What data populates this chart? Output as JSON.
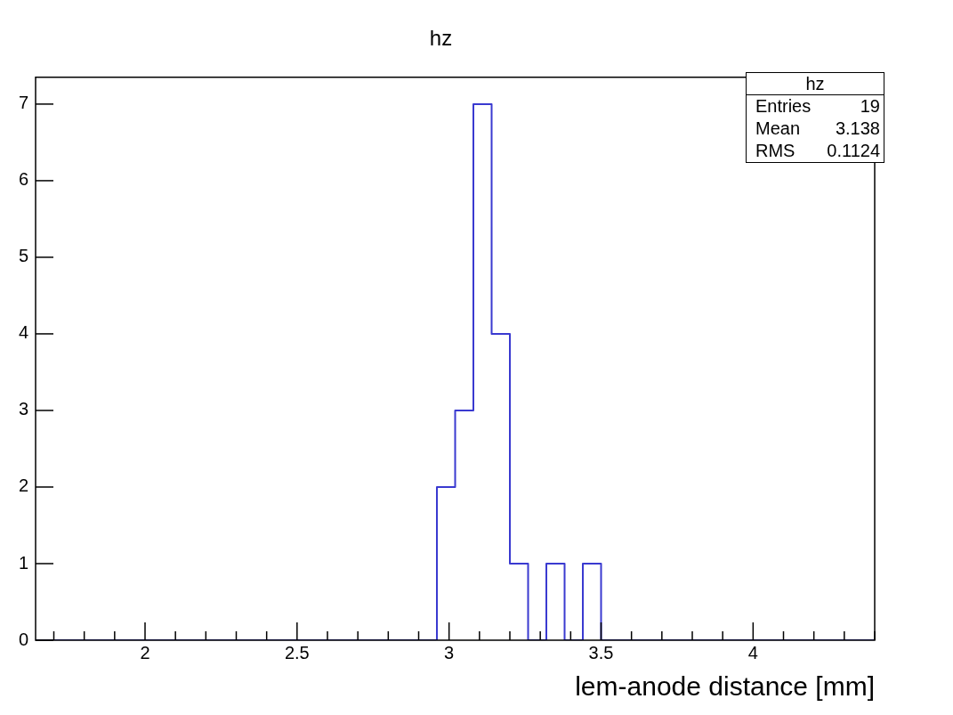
{
  "chart_data": {
    "type": "histogram",
    "title": "hz",
    "xlabel": "lem-anode distance [mm]",
    "bins": [
      1.64,
      1.7,
      1.76,
      1.82,
      1.88,
      1.94,
      2.0,
      2.06,
      2.12,
      2.18,
      2.24,
      2.3,
      2.36,
      2.42,
      2.48,
      2.54,
      2.6,
      2.66,
      2.72,
      2.78,
      2.84,
      2.9,
      2.96,
      3.02,
      3.08,
      3.14,
      3.2,
      3.26,
      3.32,
      3.38,
      3.44,
      3.5,
      3.56,
      3.62,
      3.68,
      3.74,
      3.8,
      3.86,
      3.92,
      3.98,
      4.04,
      4.1,
      4.16,
      4.22,
      4.28,
      4.34,
      4.4
    ],
    "values": [
      0,
      0,
      0,
      0,
      0,
      0,
      0,
      0,
      0,
      0,
      0,
      0,
      0,
      0,
      0,
      0,
      0,
      0,
      0,
      0,
      0,
      0,
      2,
      3,
      7,
      4,
      1,
      0,
      1,
      0,
      1,
      0,
      0,
      0,
      0,
      0,
      0,
      0,
      0,
      0,
      0,
      0,
      0,
      0,
      0,
      0
    ],
    "color": "#3a3ad0",
    "xlim": [
      1.64,
      4.4
    ],
    "xticks": [
      {
        "value": 1.7,
        "label": null
      },
      {
        "value": 1.8,
        "label": null
      },
      {
        "value": 1.9,
        "label": null
      },
      2,
      {
        "value": 2.1,
        "label": null
      },
      {
        "value": 2.2,
        "label": null
      },
      {
        "value": 2.3,
        "label": null
      },
      {
        "value": 2.4,
        "label": null
      },
      2.5,
      {
        "value": 2.6,
        "label": null
      },
      {
        "value": 2.7,
        "label": null
      },
      {
        "value": 2.8,
        "label": null
      },
      {
        "value": 2.9,
        "label": null
      },
      3,
      {
        "value": 3.1,
        "label": null
      },
      {
        "value": 3.2,
        "label": null
      },
      {
        "value": 3.3,
        "label": null
      },
      {
        "value": 3.4,
        "label": null
      },
      3.5,
      {
        "value": 3.6,
        "label": null
      },
      {
        "value": 3.7,
        "label": null
      },
      {
        "value": 3.8,
        "label": null
      },
      {
        "value": 3.9,
        "label": null
      },
      4,
      {
        "value": 4.1,
        "label": null
      },
      {
        "value": 4.2,
        "label": null
      },
      {
        "value": 4.3,
        "label": null
      },
      {
        "value": 4.4,
        "label": null
      }
    ],
    "ylim": [
      0,
      7.35
    ],
    "yticks": [
      0,
      1,
      2,
      3,
      4,
      5,
      6,
      7
    ],
    "grid": false,
    "legend": false,
    "annotations": [
      "hz",
      "Entries",
      "19",
      "Mean",
      "3.138",
      "RMS",
      "0.1124"
    ]
  }
}
